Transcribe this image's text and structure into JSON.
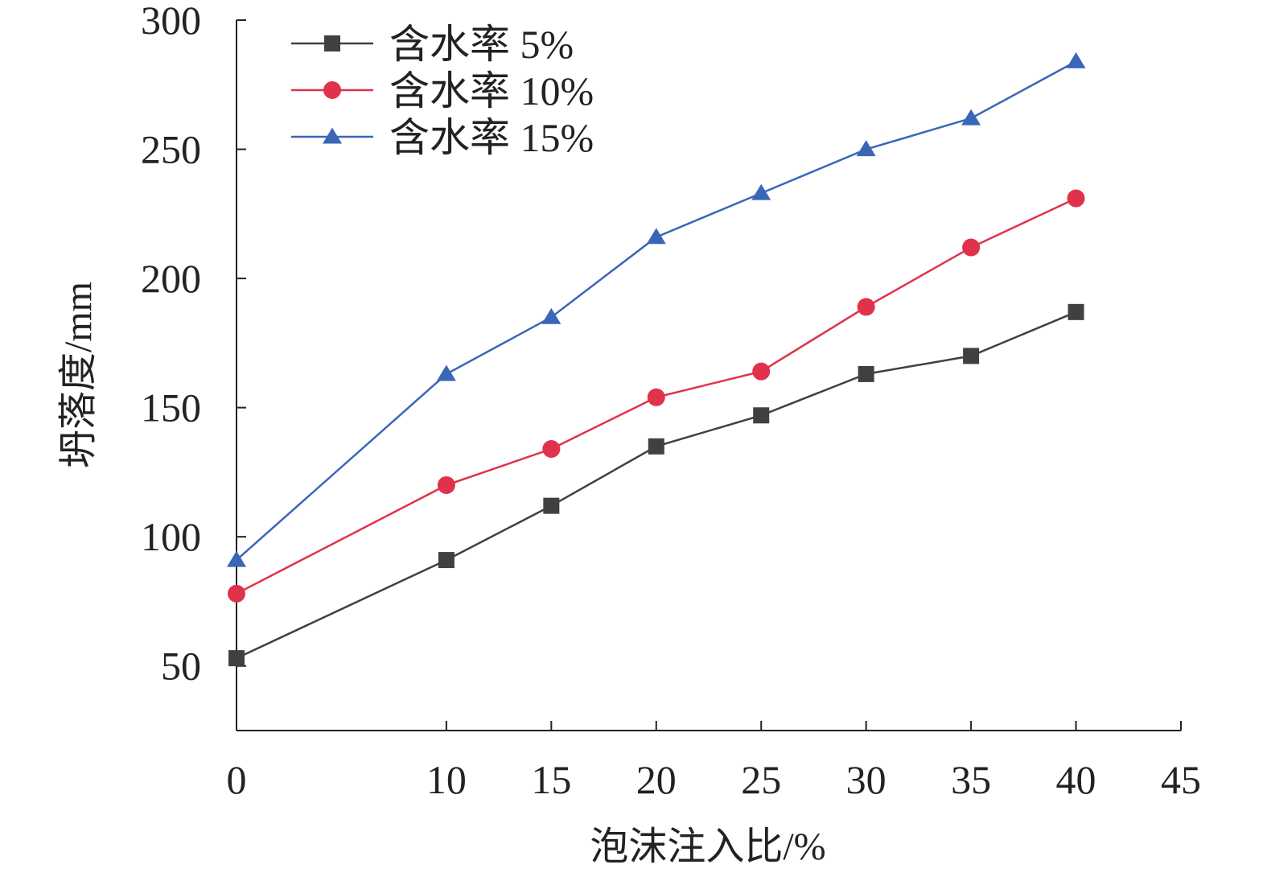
{
  "chart_data": {
    "type": "line",
    "title": "",
    "xlabel": "泡沫注入比/%",
    "ylabel": "坍落度/mm",
    "xlim": [
      0,
      45
    ],
    "ylim": [
      25,
      300
    ],
    "x_ticks": [
      0,
      10,
      15,
      20,
      25,
      30,
      35,
      40,
      45
    ],
    "x_tick_labels": [
      "0",
      "10",
      "15",
      "20",
      "25",
      "30",
      "35",
      "40",
      "45"
    ],
    "y_ticks": [
      50,
      100,
      150,
      200,
      250,
      300
    ],
    "y_tick_labels": [
      "50",
      "100",
      "150",
      "200",
      "250",
      "300"
    ],
    "legend_position": "top-left",
    "grid": false,
    "series": [
      {
        "name": "含水率 5%",
        "color": "#404040",
        "marker": "square",
        "x": [
          0,
          10,
          15,
          20,
          25,
          30,
          35,
          40
        ],
        "values": [
          53,
          91,
          112,
          135,
          147,
          163,
          170,
          187
        ]
      },
      {
        "name": "含水率 10%",
        "color": "#e0324a",
        "marker": "circle",
        "x": [
          0,
          10,
          15,
          20,
          25,
          30,
          35,
          40
        ],
        "values": [
          78,
          120,
          134,
          154,
          164,
          189,
          212,
          231
        ]
      },
      {
        "name": "含水率 15%",
        "color": "#3a66b8",
        "marker": "triangle",
        "x": [
          0,
          10,
          15,
          20,
          25,
          30,
          35,
          40
        ],
        "values": [
          91,
          163,
          185,
          216,
          233,
          250,
          262,
          284
        ]
      }
    ]
  }
}
